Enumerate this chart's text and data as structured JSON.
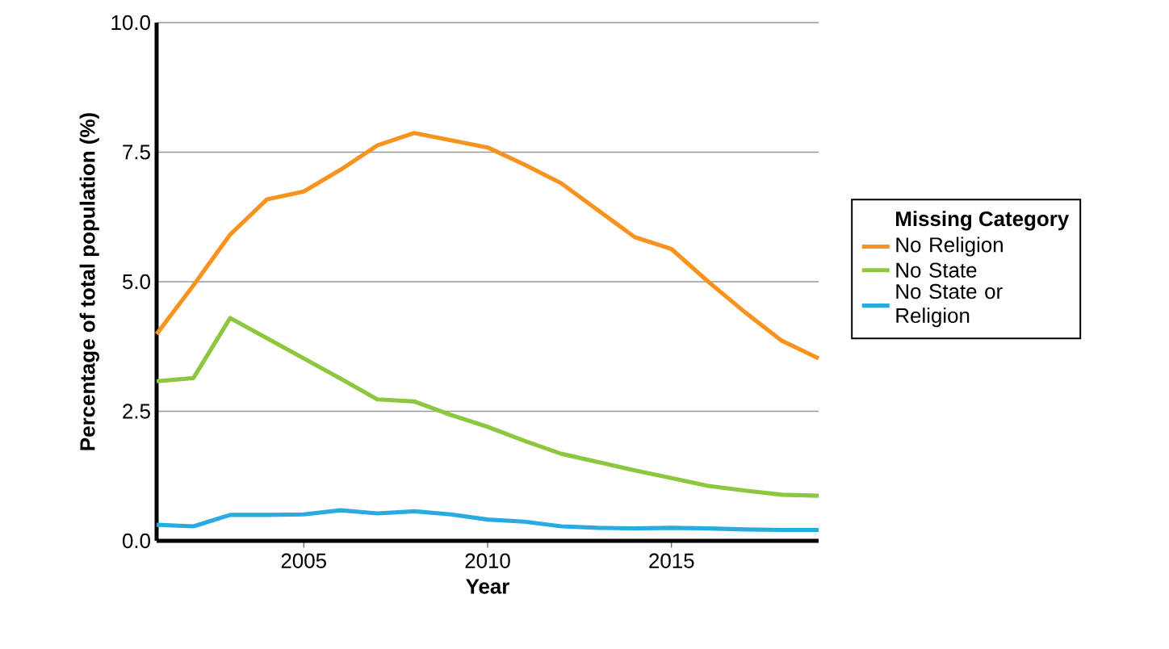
{
  "chart_data": {
    "type": "line",
    "xlabel": "Year",
    "ylabel": "Percentage of total population (%)",
    "legend_title": "Missing Category",
    "legend": "right",
    "grid": "y",
    "xlim": [
      2001,
      2019
    ],
    "xticks": [
      2005,
      2010,
      2015
    ],
    "ylim": [
      0,
      10
    ],
    "yticks": [
      {
        "value": 0,
        "label": "0.0"
      },
      {
        "value": 2.5,
        "label": "2.5"
      },
      {
        "value": 5,
        "label": "5.0"
      },
      {
        "value": 7.5,
        "label": "7.5"
      },
      {
        "value": 10,
        "label": "10.0"
      }
    ],
    "x": [
      2001,
      2002,
      2003,
      2004,
      2005,
      2006,
      2007,
      2008,
      2009,
      2010,
      2011,
      2012,
      2013,
      2014,
      2015,
      2016,
      2017,
      2018,
      2019
    ],
    "series": [
      {
        "name": "No Religion",
        "color": "#f7931e",
        "values": [
          3.99,
          4.93,
          5.91,
          6.59,
          6.74,
          7.16,
          7.63,
          7.87,
          7.73,
          7.59,
          7.26,
          6.9,
          6.38,
          5.86,
          5.63,
          5.0,
          4.41,
          3.86,
          3.52
        ]
      },
      {
        "name": "No State",
        "color": "#8dc63f",
        "values": [
          3.08,
          3.14,
          4.3,
          3.91,
          3.52,
          3.13,
          2.73,
          2.69,
          2.43,
          2.2,
          1.93,
          1.68,
          1.52,
          1.36,
          1.21,
          1.06,
          0.97,
          0.89,
          0.87
        ]
      },
      {
        "name": "No State or Religion",
        "color": "#29abe2",
        "values": [
          0.31,
          0.28,
          0.5,
          0.5,
          0.51,
          0.59,
          0.53,
          0.57,
          0.51,
          0.41,
          0.37,
          0.28,
          0.25,
          0.24,
          0.25,
          0.24,
          0.22,
          0.21,
          0.21
        ]
      }
    ]
  }
}
